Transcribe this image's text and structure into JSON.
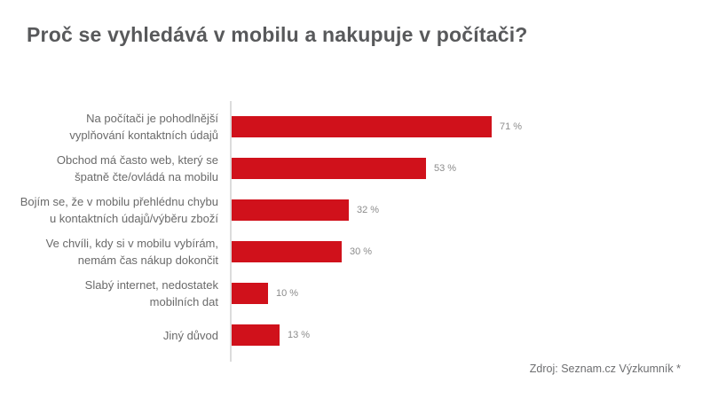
{
  "title": "Proč se vyhledává v mobilu a nakupuje v počítači?",
  "source": "Zdroj: Seznam.cz Výzkumník *",
  "colors": {
    "bar": "#d0111b",
    "title_text": "#58595b",
    "category_text": "#6a6a6a",
    "value_text": "#8c8c8c",
    "axis_line": "#dcdcdc",
    "background": "#ffffff"
  },
  "chart_data": {
    "type": "bar",
    "orientation": "horizontal",
    "title": "Proč se vyhledává v mobilu a nakupuje v počítači?",
    "xlabel": "",
    "ylabel": "",
    "xlim": [
      0,
      100
    ],
    "grid": false,
    "legend": false,
    "unit": "%",
    "categories": [
      "Na počítači je pohodlnější vyplňování kontaktních údajů",
      "Obchod má často web, který se špatně čte/ovládá na mobilu",
      "Bojím se, že v mobilu přehlédnu chybu u kontaktních údajů/výběru zboží",
      "Ve chvíli, kdy si v mobilu vybírám, nemám čas nákup dokončit",
      "Slabý internet, nedostatek mobilních dat",
      "Jiný důvod"
    ],
    "category_lines": [
      [
        "Na počítači je pohodlnější",
        "vyplňování kontaktních údajů"
      ],
      [
        "Obchod má často web, který se",
        "špatně čte/ovládá na mobilu"
      ],
      [
        "Bojím se, že v mobilu přehlédnu chybu",
        "u kontaktních údajů/výběru zboží"
      ],
      [
        "Ve chvíli, kdy si v mobilu vybírám,",
        "nemám čas nákup dokončit"
      ],
      [
        "Slabý internet, nedostatek",
        "mobilních dat"
      ],
      [
        "Jiný důvod"
      ]
    ],
    "values": [
      71,
      53,
      32,
      30,
      10,
      13
    ],
    "value_labels": [
      "71 %",
      "53 %",
      "32 %",
      "30 %",
      "10 %",
      "13 %"
    ]
  }
}
